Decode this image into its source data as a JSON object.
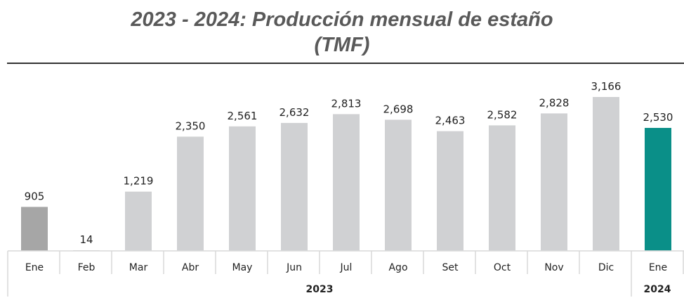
{
  "chart_data": {
    "type": "bar",
    "title": "2023 - 2024: Producción mensual de estaño",
    "subtitle": "(TMF)",
    "categories": [
      "Ene",
      "Feb",
      "Mar",
      "Abr",
      "May",
      "Jun",
      "Jul",
      "Ago",
      "Set",
      "Oct",
      "Nov",
      "Dic",
      "Ene"
    ],
    "groups": [
      {
        "label": "2023",
        "count": 12
      },
      {
        "label": "2024",
        "count": 1
      }
    ],
    "values": [
      905,
      14,
      1219,
      2350,
      2561,
      2632,
      2813,
      2698,
      2463,
      2582,
      2828,
      3166,
      2530
    ],
    "value_labels": [
      "905",
      "14",
      "1,219",
      "2,350",
      "2,561",
      "2,632",
      "2,813",
      "2,698",
      "2,463",
      "2,582",
      "2,828",
      "3,166",
      "2,530"
    ],
    "colors": [
      "#a6a6a6",
      "#d0d1d3",
      "#d0d1d3",
      "#d0d1d3",
      "#d0d1d3",
      "#d0d1d3",
      "#d0d1d3",
      "#d0d1d3",
      "#d0d1d3",
      "#d0d1d3",
      "#d0d1d3",
      "#d0d1d3",
      "#0a8f88"
    ],
    "ylim": [
      0,
      3166
    ],
    "grid": false,
    "xlabel": "",
    "ylabel": ""
  }
}
